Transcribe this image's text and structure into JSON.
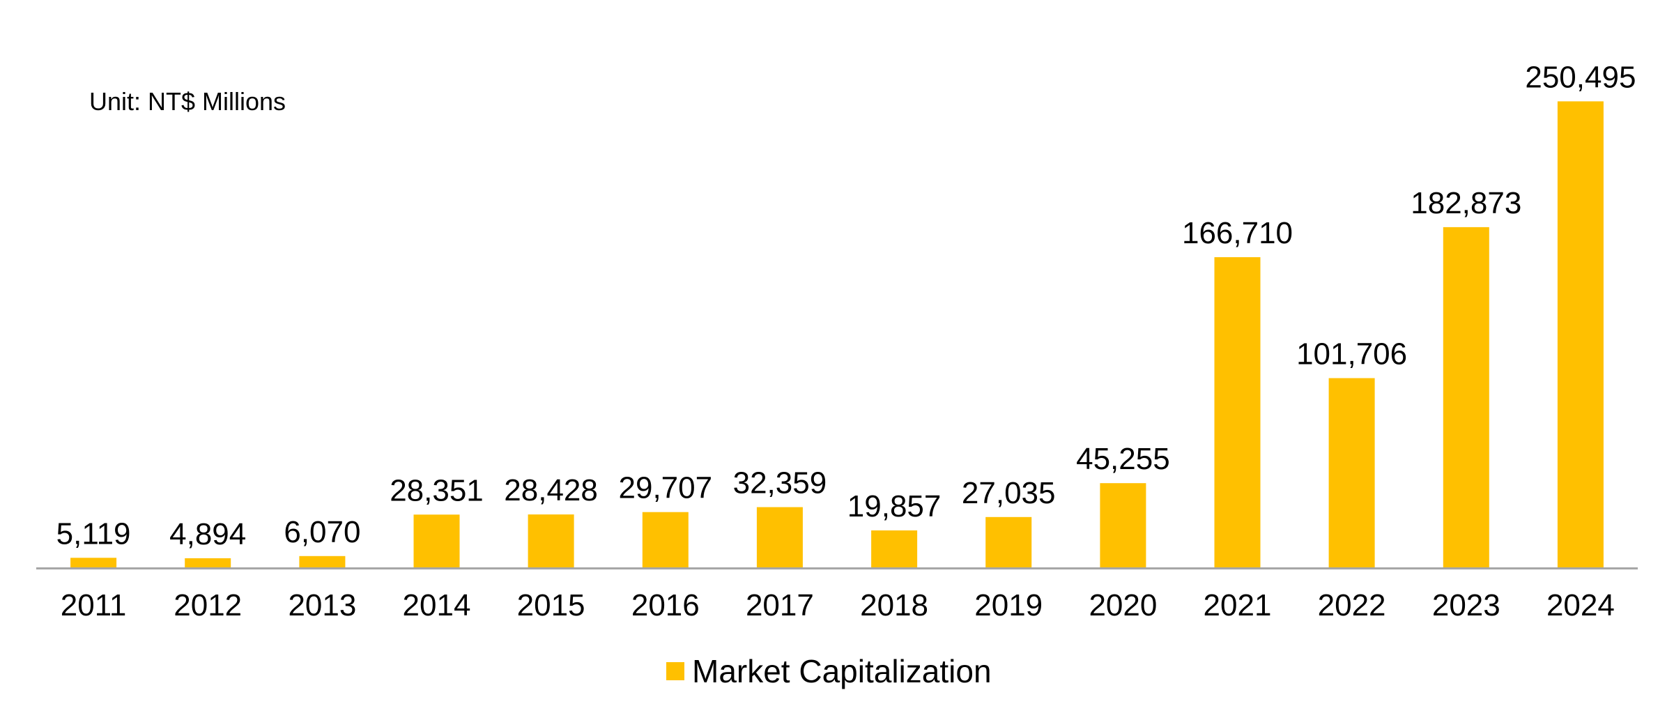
{
  "chart_data": {
    "type": "bar",
    "unit_label": "Unit: NT$ Millions",
    "categories": [
      "2011",
      "2012",
      "2013",
      "2014",
      "2015",
      "2016",
      "2017",
      "2018",
      "2019",
      "2020",
      "2021",
      "2022",
      "2023",
      "2024"
    ],
    "series": [
      {
        "name": "Market Capitalization",
        "color": "#FFC000",
        "values": [
          5119,
          4894,
          6070,
          28351,
          28428,
          29707,
          32359,
          19857,
          27035,
          45255,
          166710,
          101706,
          182873,
          250495
        ],
        "value_labels": [
          "5,119",
          "4,894",
          "6,070",
          "28,351",
          "28,428",
          "29,707",
          "32,359",
          "19,857",
          "27,035",
          "45,255",
          "166,710",
          "101,706",
          "182,873",
          "250,495"
        ]
      }
    ],
    "ylim": [
      0,
      275000
    ],
    "grid": false,
    "legend_position": "bottom-center",
    "axis_color": "#A6A6A6"
  }
}
